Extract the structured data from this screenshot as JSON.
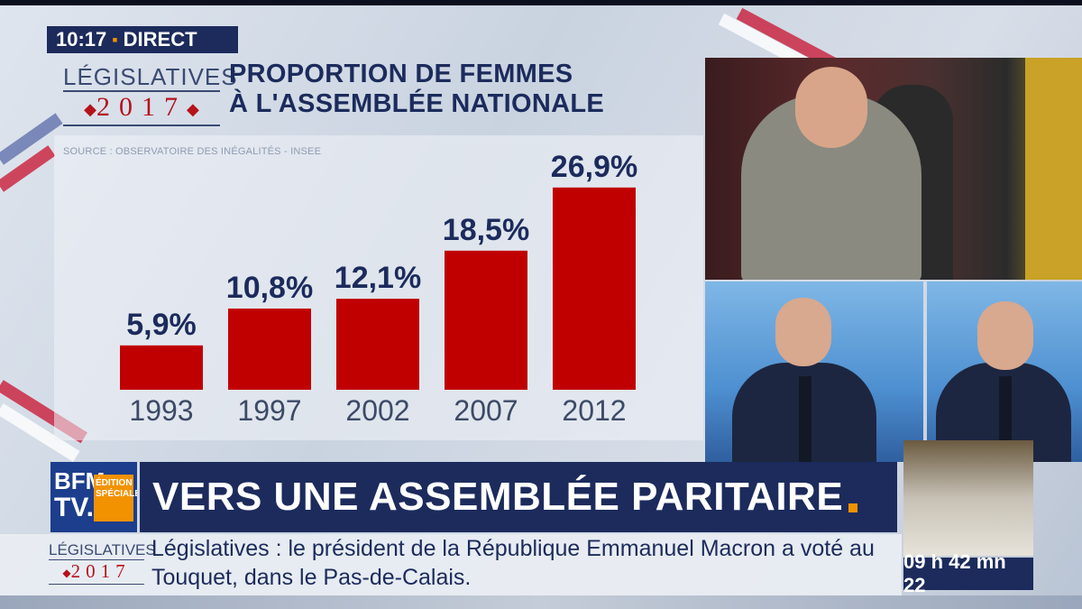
{
  "badge": {
    "time": "10:17",
    "separator": "▪",
    "live": "DIRECT"
  },
  "logo": {
    "top": "LÉGISLATIVES",
    "year": "2017",
    "dot": "◆"
  },
  "chart_data": {
    "type": "bar",
    "title_lines": [
      "PROPORTION DE FEMMES",
      "À L'ASSEMBLÉE NATIONALE"
    ],
    "source": "SOURCE : OBSERVATOIRE DES INÉGALITÉS - INSEE",
    "categories": [
      "1993",
      "1997",
      "2002",
      "2007",
      "2012"
    ],
    "values": [
      5.9,
      10.8,
      12.1,
      18.5,
      26.9
    ],
    "labels": [
      "5,9%",
      "10,8%",
      "12,1%",
      "18,5%",
      "26,9%"
    ],
    "bar_color": "#c00000",
    "label_color": "#1c2b5c",
    "ylim": [
      0,
      30
    ],
    "grid": false
  },
  "channel": {
    "line1": "BFM",
    "line2": "TV.",
    "edition": "ÉDITION SPÉCIALE"
  },
  "headline": "VERS UNE ASSEMBLÉE PARITAIRE",
  "ticker": {
    "logo_top": "LÉGISLATIVES",
    "logo_year": "2017",
    "text": "Législatives : le président de la République Emmanuel Macron a voté au Touquet, dans le Pas-de-Calais."
  },
  "clock": "09 h 42 mn 22",
  "colors": {
    "navy": "#1c2b5c",
    "accent": "#f39200",
    "red": "#b5121b"
  }
}
